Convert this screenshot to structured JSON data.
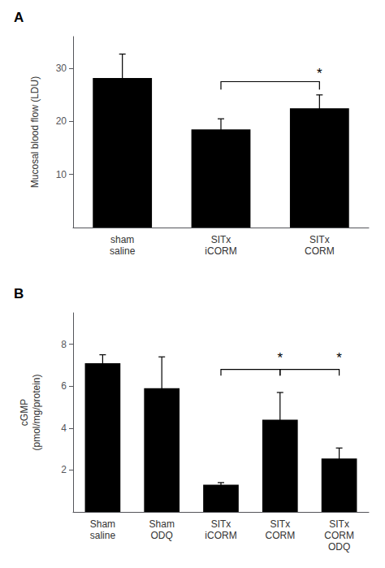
{
  "chart_data": [
    {
      "type": "bar",
      "title": "A",
      "categories": [
        "sham\nsaline",
        "SITx\niCORM",
        "SITx\nCORM"
      ],
      "values": [
        28.2,
        18.5,
        22.5
      ],
      "errors": [
        4.5,
        2.0,
        2.5
      ],
      "ylabel": "Mucosal blood flow (LDU)",
      "color": "#000000",
      "ylim": [
        0,
        36
      ],
      "yticks": [
        10,
        20,
        30
      ],
      "grid": false,
      "brackets": [
        {
          "from": "SITx\niCORM",
          "to": "SITx\nCORM",
          "y": 27.5,
          "drop": 1.5,
          "text": "*",
          "text_y": 27.8
        }
      ]
    },
    {
      "type": "bar",
      "title": "B",
      "categories": [
        "Sham\nsaline",
        "Sham\nODQ",
        "SITx\niCORM",
        "SITx\nCORM",
        "SITx\nCORM\nODQ"
      ],
      "values": [
        7.1,
        5.9,
        1.3,
        4.4,
        2.55
      ],
      "errors": [
        0.4,
        1.5,
        0.1,
        1.3,
        0.5
      ],
      "ylabel": "cGMP\n(pmol/mg/protein)",
      "color": "#000000",
      "ylim": [
        0,
        9.5
      ],
      "yticks": [
        2,
        4,
        6,
        8
      ],
      "grid": false,
      "brackets": [
        {
          "from": "SITx\niCORM",
          "to": "SITx\nCORM",
          "y": 6.8,
          "drop": 0.3,
          "text": "*",
          "text_y": 7.0
        },
        {
          "from": "SITx\nCORM",
          "to": "SITx\nCORM\nODQ",
          "y": 6.8,
          "drop": 0.3,
          "text": "*",
          "text_y": 7.0
        }
      ]
    }
  ]
}
